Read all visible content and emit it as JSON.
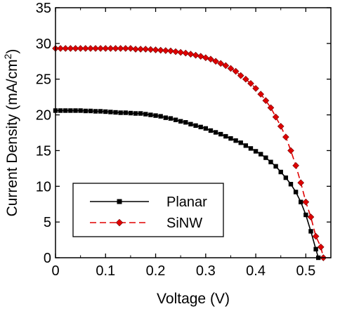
{
  "chart_data": {
    "type": "line",
    "title": "",
    "xlabel": "Voltage (V)",
    "ylabel": "Current Density (mA/cm",
    "ylabel_sup": "2",
    "ylabel_close": ")",
    "xlim": [
      0,
      0.55
    ],
    "ylim": [
      0,
      35
    ],
    "x_ticks": [
      0,
      0.1,
      0.2,
      0.3,
      0.4,
      0.5
    ],
    "x_tick_labels": [
      "0",
      "0.1",
      "0.2",
      "0.3",
      "0.4",
      "0.5"
    ],
    "y_ticks": [
      0,
      5,
      10,
      15,
      20,
      25,
      30,
      35
    ],
    "y_tick_labels": [
      "0",
      "5",
      "10",
      "15",
      "20",
      "25",
      "30",
      "35"
    ],
    "grid": false,
    "legend_position": "bottom-left",
    "series": [
      {
        "name": "Planar",
        "color": "#000000",
        "line_style": "solid",
        "marker": "square",
        "x": [
          0,
          0.01,
          0.02,
          0.03,
          0.04,
          0.05,
          0.06,
          0.07,
          0.08,
          0.09,
          0.1,
          0.11,
          0.12,
          0.13,
          0.14,
          0.15,
          0.16,
          0.17,
          0.18,
          0.19,
          0.2,
          0.21,
          0.22,
          0.23,
          0.24,
          0.25,
          0.26,
          0.27,
          0.28,
          0.29,
          0.3,
          0.31,
          0.32,
          0.33,
          0.34,
          0.35,
          0.36,
          0.37,
          0.38,
          0.39,
          0.4,
          0.41,
          0.42,
          0.43,
          0.44,
          0.45,
          0.46,
          0.47,
          0.48,
          0.49,
          0.5,
          0.51,
          0.52,
          0.525
        ],
        "y": [
          20.6,
          20.6,
          20.6,
          20.6,
          20.6,
          20.6,
          20.55,
          20.55,
          20.5,
          20.5,
          20.45,
          20.4,
          20.35,
          20.3,
          20.3,
          20.25,
          20.2,
          20.2,
          20.1,
          20.0,
          19.9,
          19.8,
          19.6,
          19.5,
          19.3,
          19.1,
          18.95,
          18.7,
          18.5,
          18.3,
          18.1,
          17.8,
          17.55,
          17.3,
          17.0,
          16.7,
          16.4,
          16.1,
          15.7,
          15.3,
          14.9,
          14.5,
          14.0,
          13.4,
          12.8,
          12.0,
          11.2,
          10.3,
          9.2,
          7.8,
          6.0,
          3.7,
          1.2,
          0
        ]
      },
      {
        "name": "SiNW",
        "color": "#e00000",
        "line_style": "dashed",
        "marker": "diamond",
        "x": [
          0,
          0.01,
          0.02,
          0.03,
          0.04,
          0.05,
          0.06,
          0.07,
          0.08,
          0.09,
          0.1,
          0.11,
          0.12,
          0.13,
          0.14,
          0.15,
          0.16,
          0.17,
          0.18,
          0.19,
          0.2,
          0.21,
          0.22,
          0.23,
          0.24,
          0.25,
          0.26,
          0.27,
          0.28,
          0.29,
          0.3,
          0.31,
          0.32,
          0.33,
          0.34,
          0.35,
          0.36,
          0.37,
          0.38,
          0.39,
          0.4,
          0.41,
          0.42,
          0.43,
          0.44,
          0.45,
          0.46,
          0.47,
          0.48,
          0.49,
          0.5,
          0.51,
          0.52,
          0.53,
          0.535
        ],
        "y": [
          29.3,
          29.3,
          29.3,
          29.3,
          29.3,
          29.3,
          29.3,
          29.3,
          29.3,
          29.3,
          29.3,
          29.3,
          29.3,
          29.3,
          29.3,
          29.3,
          29.2,
          29.2,
          29.2,
          29.15,
          29.1,
          29.05,
          29.0,
          28.95,
          28.85,
          28.75,
          28.65,
          28.5,
          28.35,
          28.2,
          28.0,
          27.8,
          27.5,
          27.2,
          26.9,
          26.5,
          26.1,
          25.5,
          25.0,
          24.4,
          23.7,
          22.9,
          22.0,
          21.0,
          19.7,
          18.4,
          16.9,
          15.0,
          12.9,
          10.5,
          7.8,
          5.7,
          3.0,
          1.5,
          0
        ]
      }
    ]
  }
}
